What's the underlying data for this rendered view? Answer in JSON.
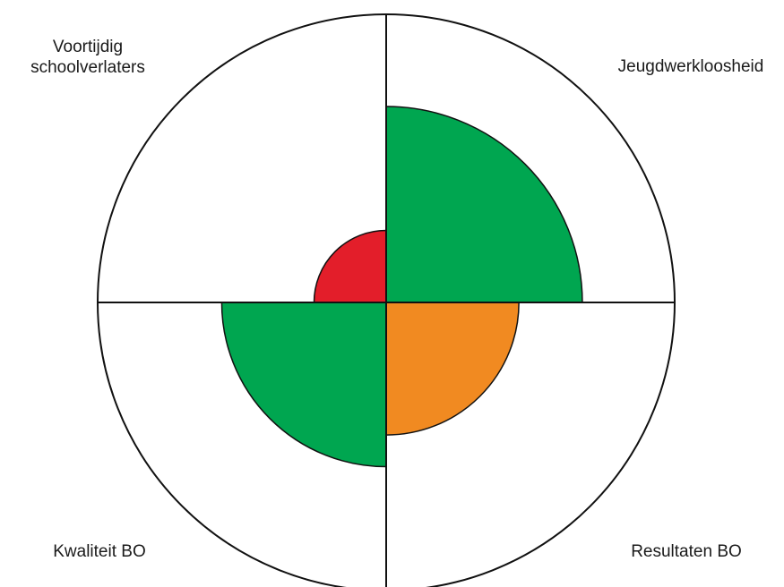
{
  "chart_data": {
    "type": "polar-area",
    "r_max": 100,
    "segments": [
      {
        "label_lines": [
          "Voortijdig",
          "schoolverlaters"
        ],
        "value": 25,
        "color": "#e31e2a"
      },
      {
        "label_lines": [
          "Jeugdwerkloosheid"
        ],
        "value": 68,
        "color": "#00a650"
      },
      {
        "label_lines": [
          "Resultaten BO"
        ],
        "value": 46,
        "color": "#f18a21"
      },
      {
        "label_lines": [
          "Kwaliteit BO"
        ],
        "value": 57,
        "color": "#00a650"
      }
    ],
    "grid": false,
    "legend": "none"
  }
}
